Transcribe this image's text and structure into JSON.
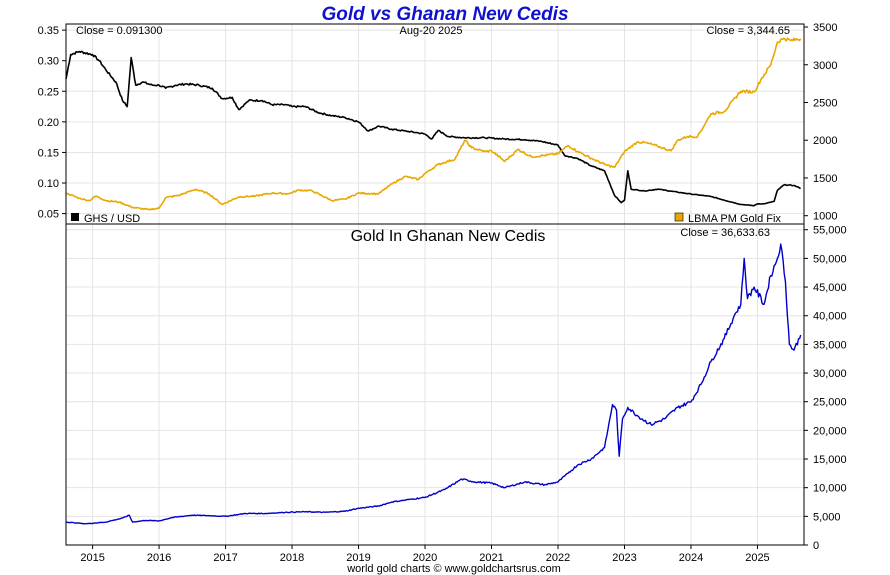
{
  "header": {
    "title": "Gold vs Ghanan New Cedis",
    "date": "Aug-20  2025",
    "footer": "world gold charts © www.goldchartsrus.com"
  },
  "chart_data": [
    {
      "type": "line",
      "title": "",
      "close_left": "Close = 0.091300",
      "close_right": "Close = 3,344.65",
      "x_ticks": [
        "2015",
        "2016",
        "2017",
        "2018",
        "2019",
        "2020",
        "2021",
        "2022",
        "2023",
        "2024",
        "2025"
      ],
      "left_ticks": [
        "0.35",
        "0.30",
        "0.25",
        "0.20",
        "0.15",
        "0.10",
        "0.05"
      ],
      "right_ticks": [
        "3500",
        "3000",
        "2500",
        "2000",
        "1500",
        "1000"
      ],
      "ylim_left": [
        0.033,
        0.36
      ],
      "ylim_right": [
        890,
        3540
      ],
      "grid": true,
      "legend_placement": "bottom",
      "series": [
        {
          "name": "GHS / USD",
          "axis": "left",
          "color": "#000000",
          "points": [
            [
              2014.6,
              0.27
            ],
            [
              2014.67,
              0.31
            ],
            [
              2014.8,
              0.315
            ],
            [
              2015.0,
              0.31
            ],
            [
              2015.1,
              0.3
            ],
            [
              2015.2,
              0.285
            ],
            [
              2015.35,
              0.265
            ],
            [
              2015.45,
              0.235
            ],
            [
              2015.52,
              0.225
            ],
            [
              2015.58,
              0.305
            ],
            [
              2015.65,
              0.26
            ],
            [
              2015.75,
              0.265
            ],
            [
              2015.9,
              0.26
            ],
            [
              2016.0,
              0.26
            ],
            [
              2016.1,
              0.255
            ],
            [
              2016.25,
              0.26
            ],
            [
              2016.4,
              0.262
            ],
            [
              2016.6,
              0.26
            ],
            [
              2016.8,
              0.255
            ],
            [
              2016.95,
              0.238
            ],
            [
              2017.1,
              0.24
            ],
            [
              2017.2,
              0.22
            ],
            [
              2017.35,
              0.235
            ],
            [
              2017.55,
              0.235
            ],
            [
              2017.7,
              0.228
            ],
            [
              2017.9,
              0.228
            ],
            [
              2018.0,
              0.225
            ],
            [
              2018.2,
              0.225
            ],
            [
              2018.4,
              0.215
            ],
            [
              2018.6,
              0.21
            ],
            [
              2018.8,
              0.207
            ],
            [
              2019.0,
              0.2
            ],
            [
              2019.15,
              0.185
            ],
            [
              2019.3,
              0.193
            ],
            [
              2019.5,
              0.188
            ],
            [
              2019.7,
              0.185
            ],
            [
              2019.9,
              0.182
            ],
            [
              2020.0,
              0.18
            ],
            [
              2020.1,
              0.172
            ],
            [
              2020.2,
              0.186
            ],
            [
              2020.35,
              0.176
            ],
            [
              2020.6,
              0.174
            ],
            [
              2020.9,
              0.174
            ],
            [
              2021.2,
              0.172
            ],
            [
              2021.5,
              0.171
            ],
            [
              2021.75,
              0.168
            ],
            [
              2022.0,
              0.162
            ],
            [
              2022.1,
              0.145
            ],
            [
              2022.3,
              0.14
            ],
            [
              2022.5,
              0.128
            ],
            [
              2022.7,
              0.12
            ],
            [
              2022.85,
              0.08
            ],
            [
              2022.95,
              0.068
            ],
            [
              2023.0,
              0.072
            ],
            [
              2023.05,
              0.12
            ],
            [
              2023.1,
              0.09
            ],
            [
              2023.3,
              0.087
            ],
            [
              2023.5,
              0.09
            ],
            [
              2023.8,
              0.085
            ],
            [
              2024.0,
              0.082
            ],
            [
              2024.3,
              0.078
            ],
            [
              2024.5,
              0.072
            ],
            [
              2024.75,
              0.065
            ],
            [
              2024.95,
              0.063
            ],
            [
              2025.0,
              0.066
            ],
            [
              2025.1,
              0.066
            ],
            [
              2025.25,
              0.07
            ],
            [
              2025.3,
              0.088
            ],
            [
              2025.4,
              0.097
            ],
            [
              2025.55,
              0.096
            ],
            [
              2025.65,
              0.0913
            ]
          ]
        },
        {
          "name": "LBMA PM Gold Fix",
          "axis": "right",
          "color": "#e8a800",
          "points": [
            [
              2014.6,
              1300
            ],
            [
              2014.8,
              1230
            ],
            [
              2014.95,
              1200
            ],
            [
              2015.05,
              1260
            ],
            [
              2015.2,
              1200
            ],
            [
              2015.4,
              1180
            ],
            [
              2015.6,
              1110
            ],
            [
              2015.85,
              1080
            ],
            [
              2016.0,
              1100
            ],
            [
              2016.1,
              1240
            ],
            [
              2016.3,
              1270
            ],
            [
              2016.55,
              1350
            ],
            [
              2016.75,
              1290
            ],
            [
              2016.95,
              1150
            ],
            [
              2017.2,
              1250
            ],
            [
              2017.45,
              1260
            ],
            [
              2017.7,
              1300
            ],
            [
              2017.95,
              1290
            ],
            [
              2018.1,
              1340
            ],
            [
              2018.3,
              1330
            ],
            [
              2018.6,
              1200
            ],
            [
              2018.8,
              1220
            ],
            [
              2019.0,
              1300
            ],
            [
              2019.3,
              1290
            ],
            [
              2019.5,
              1420
            ],
            [
              2019.7,
              1520
            ],
            [
              2019.9,
              1480
            ],
            [
              2020.0,
              1560
            ],
            [
              2020.2,
              1680
            ],
            [
              2020.45,
              1750
            ],
            [
              2020.6,
              2000
            ],
            [
              2020.7,
              1900
            ],
            [
              2020.9,
              1850
            ],
            [
              2021.0,
              1860
            ],
            [
              2021.2,
              1720
            ],
            [
              2021.4,
              1880
            ],
            [
              2021.6,
              1780
            ],
            [
              2021.8,
              1800
            ],
            [
              2022.0,
              1820
            ],
            [
              2022.15,
              1930
            ],
            [
              2022.3,
              1850
            ],
            [
              2022.5,
              1760
            ],
            [
              2022.7,
              1680
            ],
            [
              2022.85,
              1640
            ],
            [
              2023.0,
              1850
            ],
            [
              2023.2,
              1980
            ],
            [
              2023.35,
              1960
            ],
            [
              2023.5,
              1920
            ],
            [
              2023.7,
              1860
            ],
            [
              2023.8,
              2000
            ],
            [
              2023.95,
              2050
            ],
            [
              2024.1,
              2050
            ],
            [
              2024.3,
              2350
            ],
            [
              2024.5,
              2380
            ],
            [
              2024.75,
              2650
            ],
            [
              2024.95,
              2640
            ],
            [
              2025.05,
              2800
            ],
            [
              2025.2,
              3000
            ],
            [
              2025.3,
              3300
            ],
            [
              2025.4,
              3350
            ],
            [
              2025.5,
              3320
            ],
            [
              2025.65,
              3344.65
            ]
          ]
        }
      ]
    },
    {
      "type": "line",
      "title": "Gold In Ghanan New Cedis",
      "close": "Close = 36,633.63",
      "x_ticks": [
        "2015",
        "2016",
        "2017",
        "2018",
        "2019",
        "2020",
        "2021",
        "2022",
        "2023",
        "2024",
        "2025"
      ],
      "y_ticks": [
        "55,000",
        "50,000",
        "45,000",
        "40,000",
        "35,000",
        "30,000",
        "25,000",
        "20,000",
        "15,000",
        "10,000",
        "5,000",
        "0"
      ],
      "ylim": [
        0,
        56000
      ],
      "grid": true,
      "series": [
        {
          "name": "",
          "color": "#0000cc",
          "points": [
            [
              2014.6,
              4000
            ],
            [
              2014.9,
              3700
            ],
            [
              2015.2,
              4000
            ],
            [
              2015.45,
              4700
            ],
            [
              2015.55,
              5200
            ],
            [
              2015.6,
              4000
            ],
            [
              2015.8,
              4300
            ],
            [
              2016.0,
              4200
            ],
            [
              2016.2,
              4800
            ],
            [
              2016.5,
              5200
            ],
            [
              2016.8,
              5100
            ],
            [
              2017.0,
              5000
            ],
            [
              2017.3,
              5500
            ],
            [
              2017.6,
              5500
            ],
            [
              2017.9,
              5700
            ],
            [
              2018.2,
              5800
            ],
            [
              2018.5,
              5700
            ],
            [
              2018.8,
              5900
            ],
            [
              2019.0,
              6400
            ],
            [
              2019.3,
              6800
            ],
            [
              2019.5,
              7500
            ],
            [
              2019.8,
              8000
            ],
            [
              2020.0,
              8300
            ],
            [
              2020.3,
              9700
            ],
            [
              2020.55,
              11500
            ],
            [
              2020.75,
              11000
            ],
            [
              2021.0,
              10800
            ],
            [
              2021.2,
              10000
            ],
            [
              2021.5,
              11000
            ],
            [
              2021.8,
              10500
            ],
            [
              2022.0,
              11000
            ],
            [
              2022.15,
              12500
            ],
            [
              2022.3,
              14000
            ],
            [
              2022.5,
              15000
            ],
            [
              2022.7,
              17000
            ],
            [
              2022.82,
              24500
            ],
            [
              2022.88,
              23500
            ],
            [
              2022.92,
              15500
            ],
            [
              2022.97,
              22000
            ],
            [
              2023.05,
              24000
            ],
            [
              2023.2,
              22500
            ],
            [
              2023.4,
              21000
            ],
            [
              2023.6,
              22000
            ],
            [
              2023.8,
              24000
            ],
            [
              2024.0,
              25000
            ],
            [
              2024.15,
              28000
            ],
            [
              2024.3,
              32000
            ],
            [
              2024.5,
              36000
            ],
            [
              2024.65,
              40000
            ],
            [
              2024.75,
              42000
            ],
            [
              2024.8,
              50000
            ],
            [
              2024.85,
              43000
            ],
            [
              2024.95,
              45000
            ],
            [
              2025.1,
              42000
            ],
            [
              2025.2,
              47000
            ],
            [
              2025.3,
              50000
            ],
            [
              2025.35,
              52500
            ],
            [
              2025.42,
              46000
            ],
            [
              2025.48,
              35000
            ],
            [
              2025.55,
              34000
            ],
            [
              2025.65,
              36633.63
            ]
          ]
        }
      ]
    }
  ]
}
